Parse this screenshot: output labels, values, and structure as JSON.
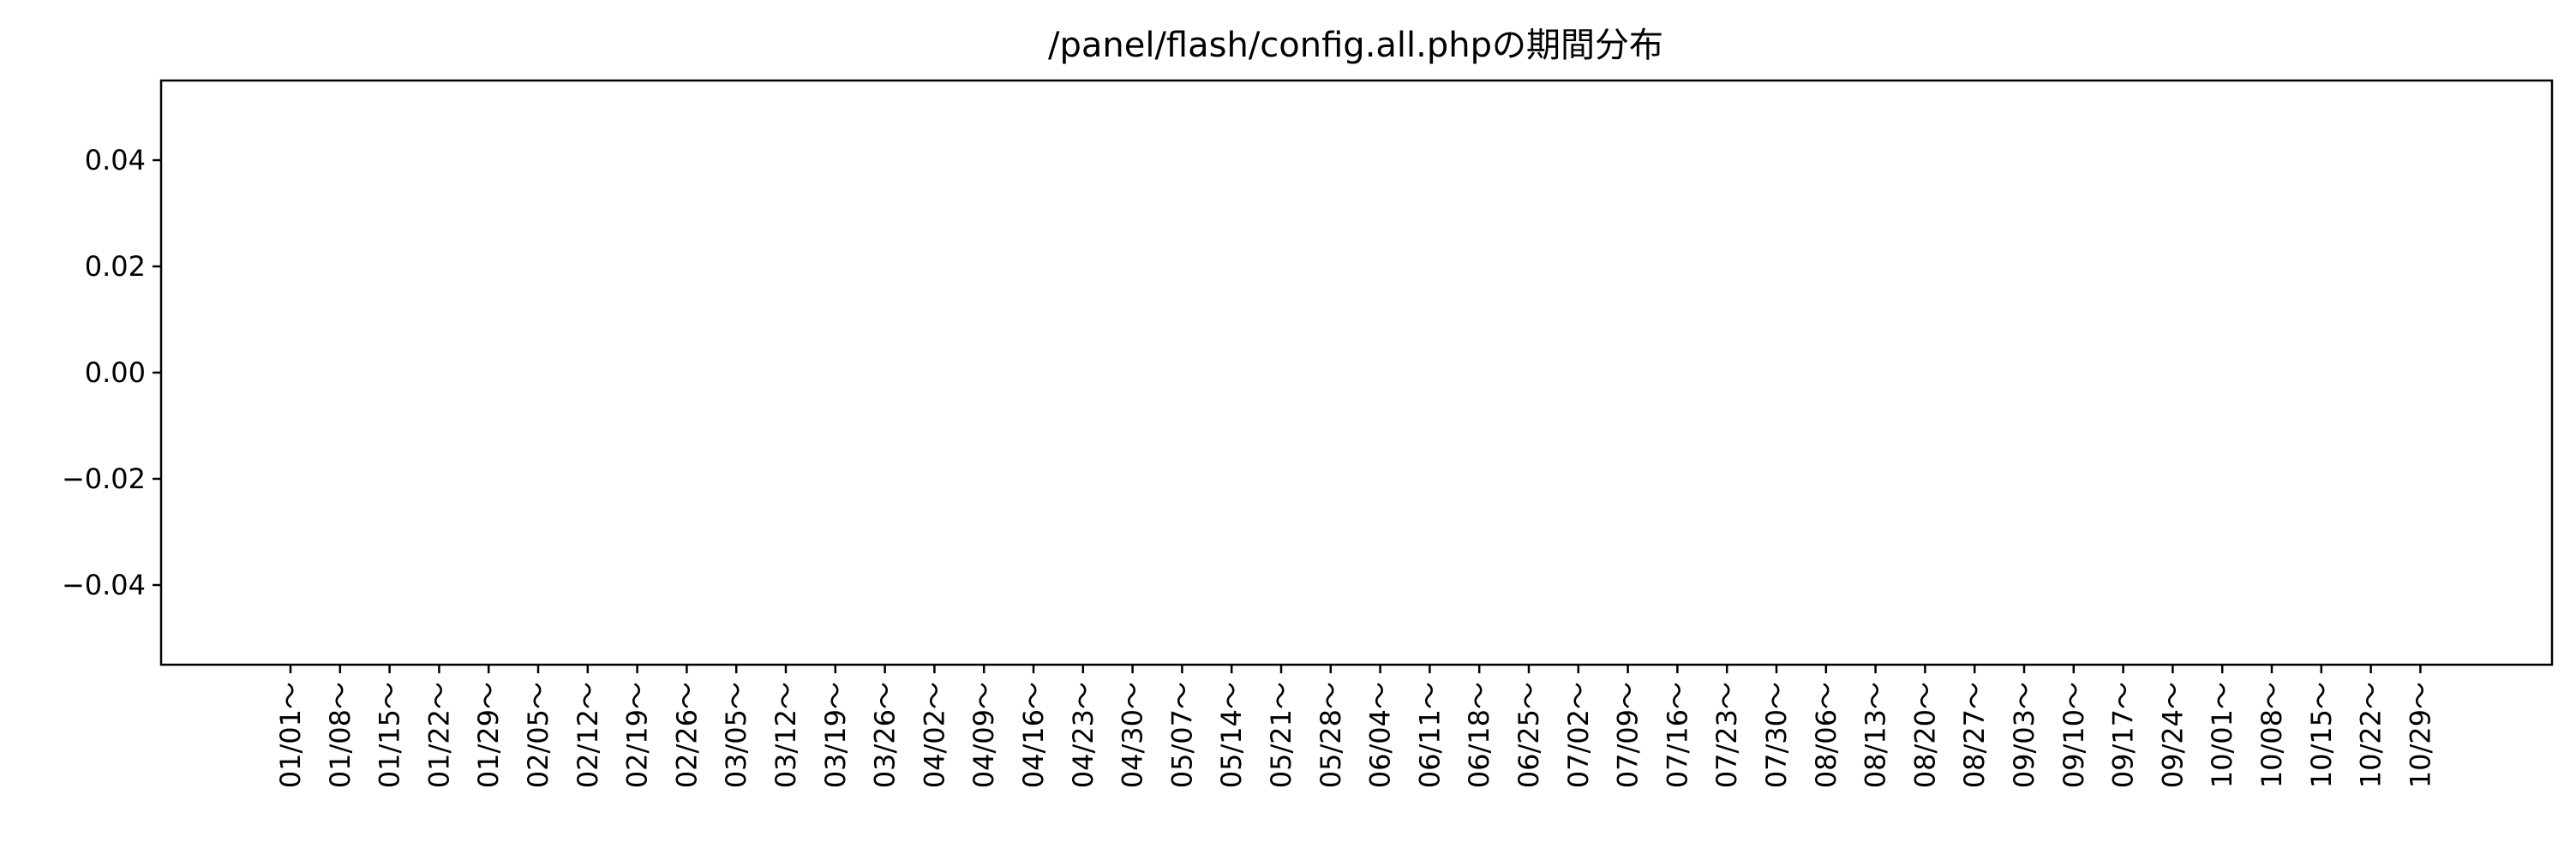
{
  "chart_data": {
    "type": "bar",
    "title": "/panel/flash/config.all.phpの期間分布",
    "xlabel": "",
    "ylabel": "",
    "categories": [
      "01/01～",
      "01/08～",
      "01/15～",
      "01/22～",
      "01/29～",
      "02/05～",
      "02/12～",
      "02/19～",
      "02/26～",
      "03/05～",
      "03/12～",
      "03/19～",
      "03/26～",
      "04/02～",
      "04/09～",
      "04/16～",
      "04/23～",
      "04/30～",
      "05/07～",
      "05/14～",
      "05/21～",
      "05/28～",
      "06/04～",
      "06/11～",
      "06/18～",
      "06/25～",
      "07/02～",
      "07/09～",
      "07/16～",
      "07/23～",
      "07/30～",
      "08/06～",
      "08/13～",
      "08/20～",
      "08/27～",
      "09/03～",
      "09/10～",
      "09/17～",
      "09/24～",
      "10/01～",
      "10/08～",
      "10/15～",
      "10/22～",
      "10/29～"
    ],
    "values": [
      0,
      0,
      0,
      0,
      0,
      0,
      0,
      0,
      0,
      0,
      0,
      0,
      0,
      0,
      0,
      0,
      0,
      0,
      0,
      0,
      0,
      0,
      0,
      0,
      0,
      0,
      0,
      0,
      0,
      0,
      0,
      0,
      0,
      0,
      0,
      0,
      0,
      0,
      0,
      0,
      0,
      0,
      0,
      0
    ],
    "ylim": [
      -0.055,
      0.055
    ],
    "yticks": [
      "0.04",
      "0.02",
      "0.00",
      "−0.02",
      "−0.04"
    ],
    "ytick_values": [
      0.04,
      0.02,
      0.0,
      -0.02,
      -0.04
    ],
    "grid": false,
    "bar_color": "#1f77b4"
  }
}
